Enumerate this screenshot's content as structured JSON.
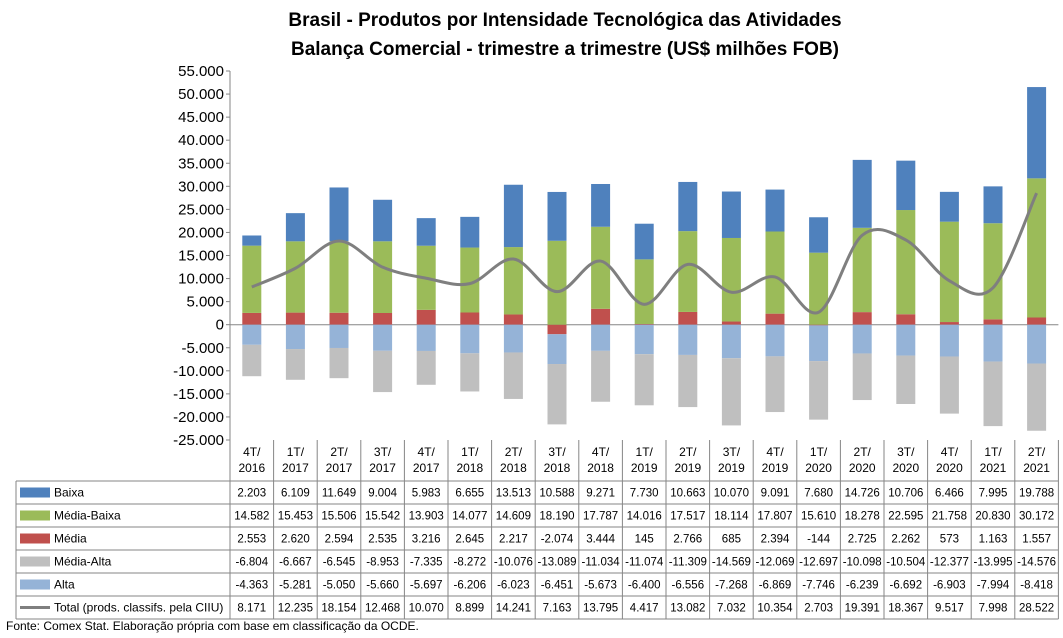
{
  "chart_data": {
    "type": "bar",
    "stacked": true,
    "title": "Brasil - Produtos por Intensidade Tecnológica das Atividades",
    "subtitle": "Balança Comercial - trimestre a trimestre (US$ milhões FOB)",
    "ylim": [
      -25000,
      55000
    ],
    "yticks": [
      "55.000",
      "50.000",
      "45.000",
      "40.000",
      "35.000",
      "30.000",
      "25.000",
      "20.000",
      "15.000",
      "10.000",
      "5.000",
      "0",
      "-5.000",
      "-10.000",
      "-15.000",
      "-20.000",
      "-25.000"
    ],
    "categories": [
      [
        "4T/",
        "2016"
      ],
      [
        "1T/",
        "2017"
      ],
      [
        "2T/",
        "2017"
      ],
      [
        "3T/",
        "2017"
      ],
      [
        "4T/",
        "2017"
      ],
      [
        "1T/",
        "2018"
      ],
      [
        "2T/",
        "2018"
      ],
      [
        "3T/",
        "2018"
      ],
      [
        "4T/",
        "2018"
      ],
      [
        "1T/",
        "2019"
      ],
      [
        "2T/",
        "2019"
      ],
      [
        "3T/",
        "2019"
      ],
      [
        "4T/",
        "2019"
      ],
      [
        "1T/",
        "2020"
      ],
      [
        "2T/",
        "2020"
      ],
      [
        "3T/",
        "2020"
      ],
      [
        "4T/",
        "2020"
      ],
      [
        "1T/",
        "2021"
      ],
      [
        "2T/",
        "2021"
      ]
    ],
    "series": [
      {
        "name": "Baixa",
        "color": "#4f81bd",
        "kind": "bar",
        "values": [
          2203,
          6109,
          11649,
          9004,
          5983,
          6655,
          13513,
          10588,
          9271,
          7730,
          10663,
          10070,
          9091,
          7680,
          14726,
          10706,
          6466,
          7995,
          19788
        ],
        "labels": [
          "2.203",
          "6.109",
          "11.649",
          "9.004",
          "5.983",
          "6.655",
          "13.513",
          "10.588",
          "9.271",
          "7.730",
          "10.663",
          "10.070",
          "9.091",
          "7.680",
          "14.726",
          "10.706",
          "6.466",
          "7.995",
          "19.788"
        ]
      },
      {
        "name": "Média-Baixa",
        "color": "#9bbb59",
        "kind": "bar",
        "values": [
          14582,
          15453,
          15506,
          15542,
          13903,
          14077,
          14609,
          18190,
          17787,
          14016,
          17517,
          18114,
          17807,
          15610,
          18278,
          22595,
          21758,
          20830,
          30172
        ],
        "labels": [
          "14.582",
          "15.453",
          "15.506",
          "15.542",
          "13.903",
          "14.077",
          "14.609",
          "18.190",
          "17.787",
          "14.016",
          "17.517",
          "18.114",
          "17.807",
          "15.610",
          "18.278",
          "22.595",
          "21.758",
          "20.830",
          "30.172"
        ]
      },
      {
        "name": "Média",
        "color": "#c0504d",
        "kind": "bar",
        "values": [
          2553,
          2620,
          2594,
          2535,
          3216,
          2645,
          2217,
          -2074,
          3444,
          145,
          2766,
          685,
          2394,
          -144,
          2725,
          2262,
          573,
          1163,
          1557
        ],
        "labels": [
          "2.553",
          "2.620",
          "2.594",
          "2.535",
          "3.216",
          "2.645",
          "2.217",
          "-2.074",
          "3.444",
          "145",
          "2.766",
          "685",
          "2.394",
          "-144",
          "2.725",
          "2.262",
          "573",
          "1.163",
          "1.557"
        ]
      },
      {
        "name": "Média-Alta",
        "color": "#bfbfbf",
        "kind": "bar",
        "values": [
          -6804,
          -6667,
          -6545,
          -8953,
          -7335,
          -8272,
          -10076,
          -13089,
          -11034,
          -11074,
          -11309,
          -14569,
          -12069,
          -12697,
          -10098,
          -10504,
          -12377,
          -13995,
          -14576
        ],
        "labels": [
          "-6.804",
          "-6.667",
          "-6.545",
          "-8.953",
          "-7.335",
          "-8.272",
          "-10.076",
          "-13.089",
          "-11.034",
          "-11.074",
          "-11.309",
          "-14.569",
          "-12.069",
          "-12.697",
          "-10.098",
          "-10.504",
          "-12.377",
          "-13.995",
          "-14.576"
        ]
      },
      {
        "name": "Alta",
        "color": "#95b3d7",
        "kind": "bar",
        "values": [
          -4363,
          -5281,
          -5050,
          -5660,
          -5697,
          -6206,
          -6023,
          -6451,
          -5673,
          -6400,
          -6556,
          -7268,
          -6869,
          -7746,
          -6239,
          -6692,
          -6903,
          -7994,
          -8418
        ],
        "labels": [
          "-4.363",
          "-5.281",
          "-5.050",
          "-5.660",
          "-5.697",
          "-6.206",
          "-6.023",
          "-6.451",
          "-5.673",
          "-6.400",
          "-6.556",
          "-7.268",
          "-6.869",
          "-7.746",
          "-6.239",
          "-6.692",
          "-6.903",
          "-7.994",
          "-8.418"
        ]
      },
      {
        "name": "Total (prods. classifs. pela CIIU)",
        "color": "#7f7f7f",
        "kind": "line",
        "values": [
          8171,
          12235,
          18154,
          12468,
          10070,
          8899,
          14241,
          7163,
          13795,
          4417,
          13082,
          7032,
          10354,
          2703,
          19391,
          18367,
          9517,
          7998,
          28522
        ],
        "labels": [
          "8.171",
          "12.235",
          "18.154",
          "12.468",
          "10.070",
          "8.899",
          "14.241",
          "7.163",
          "13.795",
          "4.417",
          "13.082",
          "7.032",
          "10.354",
          "2.703",
          "19.391",
          "18.367",
          "9.517",
          "7.998",
          "28.522"
        ]
      }
    ],
    "grid": false,
    "legend": "data-table"
  },
  "footer": {
    "source": "Fonte: Comex Stat. Elaboração própria com base em classificação da OCDE."
  }
}
